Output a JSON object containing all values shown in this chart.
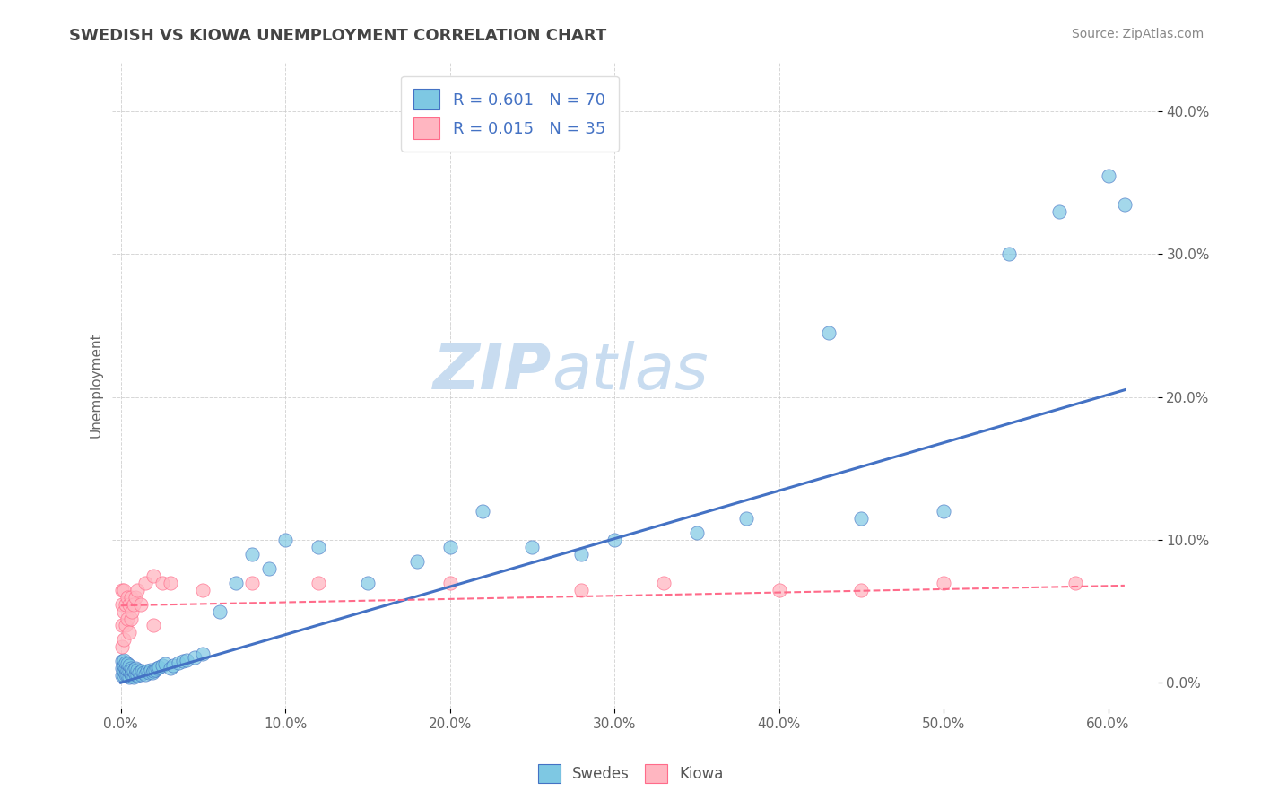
{
  "title": "SWEDISH VS KIOWA UNEMPLOYMENT CORRELATION CHART",
  "source": "Source: ZipAtlas.com",
  "xlabel_ticks": [
    "0.0%",
    "10.0%",
    "20.0%",
    "30.0%",
    "40.0%",
    "50.0%",
    "60.0%"
  ],
  "xlabel_vals": [
    0.0,
    0.1,
    0.2,
    0.3,
    0.4,
    0.5,
    0.6
  ],
  "ylabel_ticks": [
    "0.0%",
    "10.0%",
    "20.0%",
    "30.0%",
    "40.0%"
  ],
  "ylabel_vals": [
    0.0,
    0.1,
    0.2,
    0.3,
    0.4
  ],
  "ylabel_label": "Unemployment",
  "xlim": [
    -0.005,
    0.63
  ],
  "ylim": [
    -0.018,
    0.435
  ],
  "swedes_color": "#7EC8E3",
  "kiowa_color": "#FFB6C1",
  "swedes_line_color": "#4472C4",
  "kiowa_line_color": "#FF6B8A",
  "R_swedes": 0.601,
  "N_swedes": 70,
  "R_kiowa": 0.015,
  "N_kiowa": 35,
  "legend_text_color": "#4472C4",
  "background_color": "#FFFFFF",
  "grid_color": "#CCCCCC",
  "swedes_scatter_x": [
    0.001,
    0.001,
    0.001,
    0.002,
    0.002,
    0.002,
    0.002,
    0.003,
    0.003,
    0.003,
    0.004,
    0.004,
    0.004,
    0.005,
    0.005,
    0.005,
    0.006,
    0.006,
    0.007,
    0.007,
    0.008,
    0.008,
    0.009,
    0.009,
    0.01,
    0.01,
    0.011,
    0.012,
    0.013,
    0.014,
    0.015,
    0.016,
    0.017,
    0.018,
    0.019,
    0.02,
    0.021,
    0.022,
    0.023,
    0.025,
    0.027,
    0.03,
    0.032,
    0.035,
    0.038,
    0.04,
    0.045,
    0.05,
    0.06,
    0.07,
    0.08,
    0.09,
    0.1,
    0.12,
    0.15,
    0.18,
    0.2,
    0.22,
    0.25,
    0.28,
    0.3,
    0.35,
    0.38,
    0.43,
    0.45,
    0.5,
    0.54,
    0.57,
    0.6,
    0.61
  ],
  "swedes_scatter_y": [
    0.005,
    0.01,
    0.015,
    0.005,
    0.008,
    0.012,
    0.016,
    0.006,
    0.01,
    0.014,
    0.005,
    0.009,
    0.013,
    0.004,
    0.008,
    0.012,
    0.006,
    0.01,
    0.005,
    0.009,
    0.004,
    0.008,
    0.006,
    0.01,
    0.005,
    0.009,
    0.007,
    0.006,
    0.008,
    0.007,
    0.006,
    0.008,
    0.007,
    0.009,
    0.007,
    0.008,
    0.009,
    0.01,
    0.011,
    0.012,
    0.013,
    0.01,
    0.012,
    0.014,
    0.015,
    0.016,
    0.018,
    0.02,
    0.05,
    0.07,
    0.09,
    0.08,
    0.1,
    0.095,
    0.07,
    0.085,
    0.095,
    0.12,
    0.095,
    0.09,
    0.1,
    0.105,
    0.115,
    0.245,
    0.115,
    0.12,
    0.3,
    0.33,
    0.355,
    0.335
  ],
  "kiowa_scatter_x": [
    0.001,
    0.001,
    0.001,
    0.001,
    0.002,
    0.002,
    0.002,
    0.003,
    0.003,
    0.004,
    0.004,
    0.005,
    0.005,
    0.006,
    0.006,
    0.007,
    0.008,
    0.009,
    0.01,
    0.012,
    0.015,
    0.02,
    0.025,
    0.03,
    0.05,
    0.08,
    0.12,
    0.2,
    0.28,
    0.33,
    0.4,
    0.45,
    0.5,
    0.58,
    0.02
  ],
  "kiowa_scatter_y": [
    0.025,
    0.04,
    0.055,
    0.065,
    0.03,
    0.05,
    0.065,
    0.04,
    0.055,
    0.045,
    0.06,
    0.035,
    0.055,
    0.045,
    0.06,
    0.05,
    0.055,
    0.06,
    0.065,
    0.055,
    0.07,
    0.075,
    0.07,
    0.07,
    0.065,
    0.07,
    0.07,
    0.07,
    0.065,
    0.07,
    0.065,
    0.065,
    0.07,
    0.07,
    0.04
  ],
  "swedes_trendline_x": [
    0.0,
    0.61
  ],
  "swedes_trendline_y": [
    0.0,
    0.205
  ],
  "kiowa_trendline_x": [
    0.0,
    0.61
  ],
  "kiowa_trendline_y": [
    0.054,
    0.068
  ],
  "watermark_zip": "ZIP",
  "watermark_atlas": "atlas",
  "watermark_color": "#C8DCF0"
}
